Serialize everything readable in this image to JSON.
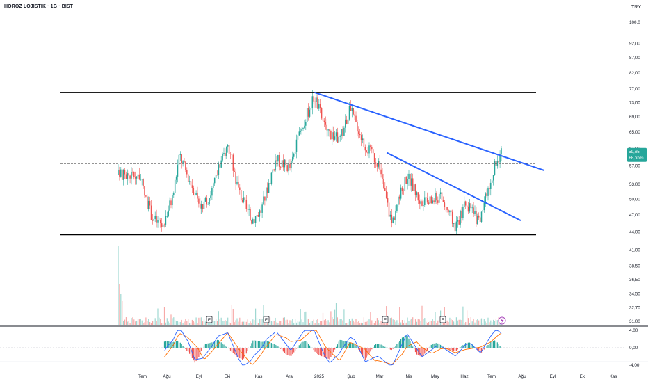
{
  "title": "HOROZ LOJISTIK · 1G · BIST",
  "currency": "TRY",
  "colors": {
    "up": "#26a69a",
    "down": "#ef5350",
    "trendline": "#2962ff",
    "channel": "#000000",
    "last_price_line": "#26a69a",
    "macd": "#2962ff",
    "signal": "#ff6d00"
  },
  "price_axis": {
    "ticks": [
      "100,0",
      "92,00",
      "87,00",
      "82,00",
      "77,00",
      "73,00",
      "69,00",
      "65,00",
      "61,00",
      "57,00",
      "53,00",
      "50,00",
      "47,00",
      "44,00",
      "41,00",
      "38,50",
      "36,50",
      "34,50",
      "32,70",
      "31,00"
    ],
    "tick_values": [
      100,
      92,
      87,
      82,
      77,
      73,
      69,
      65,
      61,
      57,
      53,
      50,
      47,
      44,
      41,
      38.5,
      36.5,
      34.5,
      32.7,
      31
    ],
    "scale": "log"
  },
  "last_price": {
    "value": "59,65",
    "change": "+8,55%"
  },
  "macd_axis": {
    "ticks": [
      "4,00",
      "0,00",
      "-4,00"
    ]
  },
  "time_axis": {
    "ticks": [
      "Tem",
      "Ağu",
      "Eyl",
      "Eki",
      "Kas",
      "Ara",
      "2025",
      "Şub",
      "Mar",
      "Nis",
      "May",
      "Haz",
      "Tem",
      "Ağu",
      "Eyl",
      "Eki",
      "Kas"
    ]
  },
  "events": {
    "earnings_label": "E",
    "earnings_count": 4,
    "flash_icon": "lightning-icon"
  },
  "chart_data": {
    "type": "candlestick",
    "symbol": "HOROZ LOJISTIK",
    "interval": "1G",
    "exchange": "BIST",
    "currency": "TRY",
    "y_scale": "log",
    "ylim": [
      31,
      100
    ],
    "x_range": [
      "2024-07",
      "2025-11"
    ],
    "price_path": [
      {
        "date": "2024-07-01",
        "close": 55.0
      },
      {
        "date": "2024-07-08",
        "close": 50.0
      },
      {
        "date": "2024-07-15",
        "close": 46.5
      },
      {
        "date": "2024-07-25",
        "close": 45.0
      },
      {
        "date": "2024-08-05",
        "close": 50.5
      },
      {
        "date": "2024-08-12",
        "close": 59.5
      },
      {
        "date": "2024-08-20",
        "close": 55.0
      },
      {
        "date": "2024-09-05",
        "close": 48.0
      },
      {
        "date": "2024-09-15",
        "close": 52.0
      },
      {
        "date": "2024-10-01",
        "close": 62.0
      },
      {
        "date": "2024-10-12",
        "close": 52.0
      },
      {
        "date": "2024-10-25",
        "close": 46.0
      },
      {
        "date": "2024-11-05",
        "close": 48.0
      },
      {
        "date": "2024-11-20",
        "close": 58.5
      },
      {
        "date": "2024-12-05",
        "close": 56.5
      },
      {
        "date": "2024-12-18",
        "close": 67.0
      },
      {
        "date": "2024-12-30",
        "close": 75.0
      },
      {
        "date": "2025-01-10",
        "close": 66.0
      },
      {
        "date": "2025-01-25",
        "close": 63.0
      },
      {
        "date": "2025-02-05",
        "close": 71.0
      },
      {
        "date": "2025-02-20",
        "close": 62.0
      },
      {
        "date": "2025-03-05",
        "close": 58.0
      },
      {
        "date": "2025-03-20",
        "close": 45.5
      },
      {
        "date": "2025-04-05",
        "close": 55.0
      },
      {
        "date": "2025-04-20",
        "close": 49.0
      },
      {
        "date": "2025-05-10",
        "close": 50.5
      },
      {
        "date": "2025-05-25",
        "close": 45.0
      },
      {
        "date": "2025-06-05",
        "close": 49.0
      },
      {
        "date": "2025-06-20",
        "close": 45.5
      },
      {
        "date": "2025-07-01",
        "close": 54.5
      },
      {
        "date": "2025-07-10",
        "close": 59.65
      }
    ],
    "last_close": 59.65,
    "last_change_pct": 8.55,
    "horizontal_levels": [
      {
        "name": "channel-top",
        "value": 76.0
      },
      {
        "name": "channel-bottom",
        "value": 43.5
      },
      {
        "name": "dashed-level",
        "value": 57.5
      }
    ],
    "trendlines": [
      {
        "name": "long-downtrend",
        "points": [
          {
            "date": "2024-12-30",
            "value": 76.0
          },
          {
            "date": "2025-08-25",
            "value": 56.0
          }
        ]
      },
      {
        "name": "short-downtrend",
        "points": [
          {
            "date": "2025-03-15",
            "value": 60.0
          },
          {
            "date": "2025-08-01",
            "value": 46.0
          }
        ]
      }
    ],
    "volume_panel": true,
    "macd_panel": {
      "ylim": [
        -4,
        4
      ],
      "series": [
        "macd",
        "signal",
        "histogram"
      ]
    }
  }
}
